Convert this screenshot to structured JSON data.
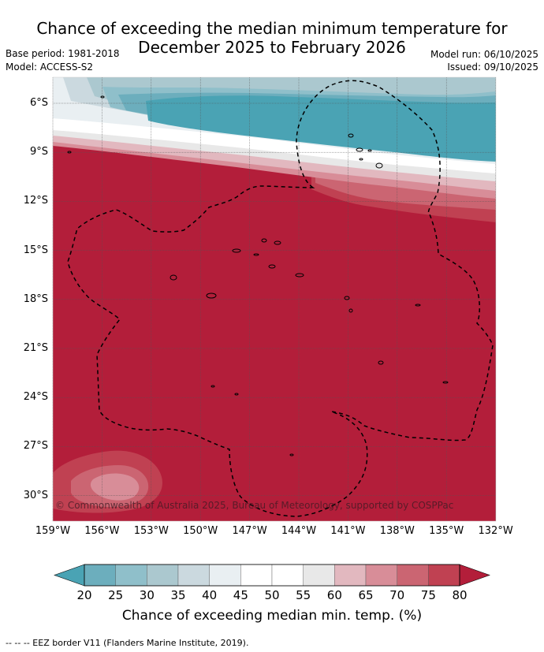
{
  "title_line1": "Chance of exceeding the median minimum temperature for",
  "title_line2": "December 2025 to February 2026",
  "base_period": "Base period: 1981-2018",
  "model": "Model: ACCESS-S2",
  "model_run": "Model run: 06/10/2025",
  "issued": "Issued: 09/10/2025",
  "copyright": "© Commonwealth of Australia 2025, Bureau of Meteorology, supported by COSPPac",
  "lat_labels": [
    "6°S",
    "9°S",
    "12°S",
    "15°S",
    "18°S",
    "21°S",
    "24°S",
    "27°S",
    "30°S"
  ],
  "lon_labels": [
    "159°W",
    "156°W",
    "153°W",
    "150°W",
    "147°W",
    "144°W",
    "141°W",
    "138°W",
    "135°W",
    "132°W"
  ],
  "colorbar": {
    "title": "Chance of exceeding median min. temp. (%)",
    "ticks": [
      "20",
      "25",
      "30",
      "35",
      "40",
      "45",
      "50",
      "55",
      "60",
      "65",
      "70",
      "75",
      "80"
    ],
    "colors": {
      "below20": "#4aa3b4",
      "b20_25": "#6caebd",
      "b25_30": "#8fbfca",
      "b30_35": "#abc8cf",
      "b35_40": "#cbd9df",
      "b40_45": "#e9eff2",
      "b45_50": "#ffffff",
      "b50_55": "#ffffff",
      "b55_60": "#e8e8e8",
      "b60_65": "#e2b8bf",
      "b65_70": "#d88d98",
      "b70_75": "#cb6572",
      "b75_80": "#c04152",
      "above80": "#b31e3a"
    }
  },
  "footer": "--  --  -- EEZ border V11 (Flanders Marine Institute, 2019)."
}
